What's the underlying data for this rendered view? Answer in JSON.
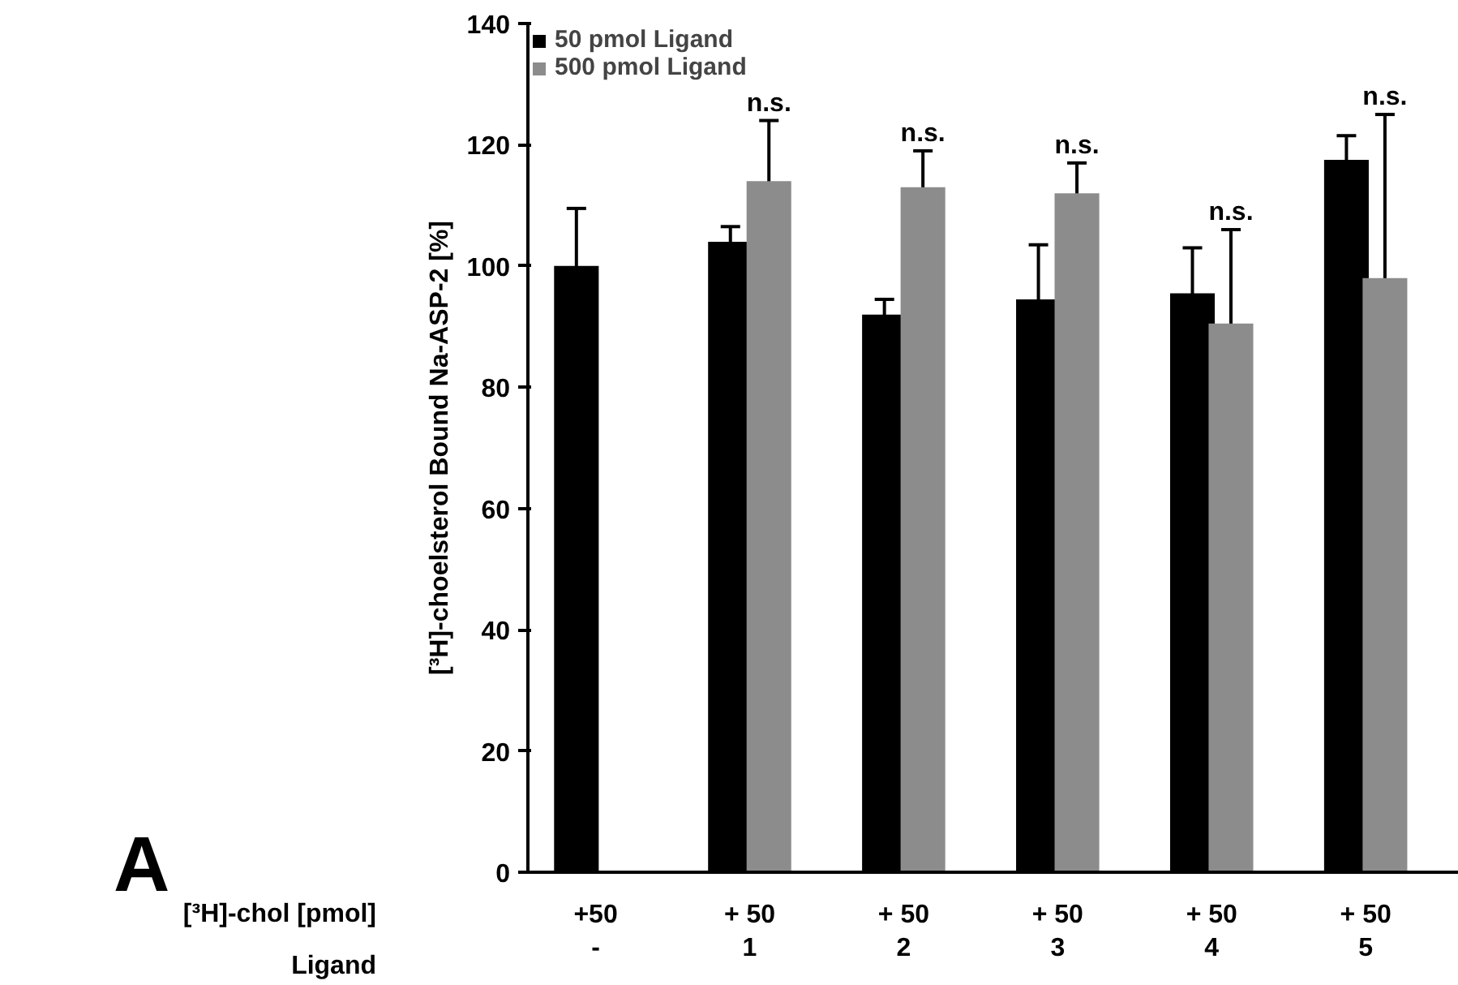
{
  "chart_data": {
    "type": "bar",
    "ylabel": "[³H]-choelsterol Bound Na-ASP-2 [%]",
    "categories": [
      "+50\n-",
      "+ 50\n1",
      "+ 50\n2",
      "+ 50\n3",
      "+ 50\n4",
      "+ 50\n5"
    ],
    "series": [
      {
        "name": "50 pmol Ligand",
        "color": "#000000",
        "values": [
          100,
          104,
          92,
          94.5,
          95.5,
          117.5
        ],
        "errors": [
          9.5,
          2.5,
          2.5,
          9,
          7.5,
          4
        ]
      },
      {
        "name": "500 pmol Ligand",
        "color": "#8c8c8c",
        "values": [
          null,
          114,
          113,
          112,
          90.5,
          98
        ],
        "errors": [
          null,
          10,
          6,
          5,
          15.5,
          27
        ]
      }
    ],
    "ylim": [
      0,
      140
    ],
    "yticks": [
      0,
      20,
      40,
      60,
      80,
      100,
      120,
      140
    ],
    "grid": false,
    "legend": "top left",
    "annotations": [
      "A",
      "[³H]-chol [pmol]",
      "Ligand",
      "n.s.",
      "n.s.",
      "n.s.",
      "n.s.",
      "n.s."
    ]
  }
}
